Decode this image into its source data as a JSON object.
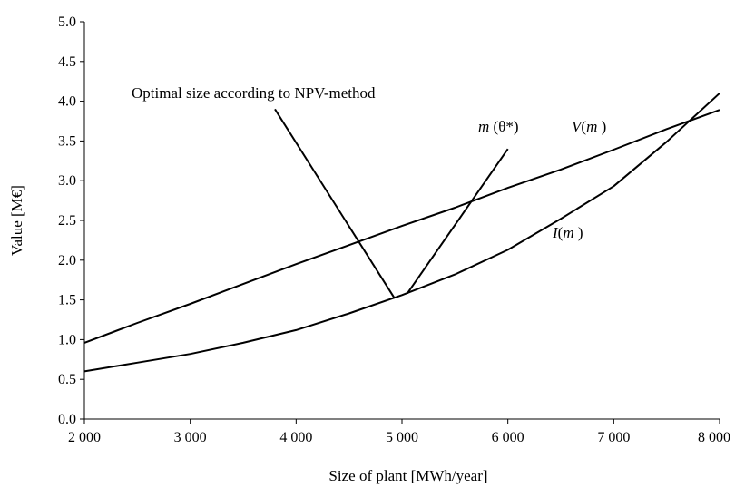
{
  "chart_data": {
    "type": "line",
    "xlabel": "Size of plant [MWh/year]",
    "ylabel": "Value [M€]",
    "xlim": [
      2000,
      8000
    ],
    "ylim": [
      0.0,
      5.0
    ],
    "grid": false,
    "x_ticks": [
      "2 000",
      "3 000",
      "4 000",
      "5 000",
      "6 000",
      "7 000",
      "8 000"
    ],
    "y_ticks": [
      "0.0",
      "0.5",
      "1.0",
      "1.5",
      "2.0",
      "2.5",
      "3.0",
      "3.5",
      "4.0",
      "4.5",
      "5.0"
    ],
    "series": [
      {
        "name": "V(m)",
        "x": [
          2000,
          2500,
          3000,
          3500,
          4000,
          4500,
          5000,
          5500,
          6000,
          6500,
          7000,
          7500,
          8000
        ],
        "y": [
          0.96,
          1.21,
          1.45,
          1.7,
          1.95,
          2.19,
          2.43,
          2.66,
          2.91,
          3.14,
          3.39,
          3.65,
          3.89
        ]
      },
      {
        "name": "I(m)",
        "x": [
          2000,
          2500,
          3000,
          3500,
          4000,
          4500,
          5000,
          5500,
          6000,
          6500,
          7000,
          7500,
          8000
        ],
        "y": [
          0.6,
          0.71,
          0.82,
          0.96,
          1.12,
          1.33,
          1.56,
          1.82,
          2.13,
          2.52,
          2.93,
          3.49,
          4.1
        ]
      },
      {
        "name": "m(θ*)",
        "x": [
          5050,
          6000
        ],
        "y": [
          1.58,
          3.4
        ]
      },
      {
        "name": "Optimal size according to NPV-method",
        "x": [
          3800,
          4930
        ],
        "y": [
          3.9,
          1.52
        ]
      }
    ],
    "annotations": {
      "npv": "Optimal size according to NPV-method",
      "m_theta_m": "m",
      "m_theta_rest": " (θ*)",
      "v_prefix": "V",
      "v_m": "m",
      "v_suffix": " )",
      "i_prefix": "I",
      "i_m": "m",
      "i_suffix": " )",
      "open_paren": "("
    }
  }
}
